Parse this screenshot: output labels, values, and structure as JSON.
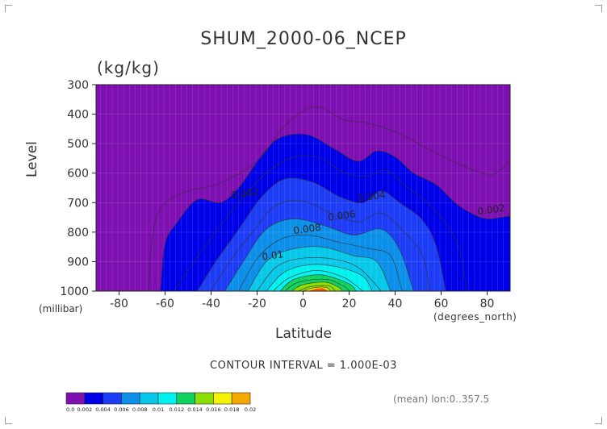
{
  "title": "SHUM_2000-06_NCEP",
  "units": "(kg/kg)",
  "ylabel": "Level",
  "yunit": "(millibar)",
  "xlabel": "Latitude",
  "xunit": "(degrees_north)",
  "contour_interval": "CONTOUR INTERVAL = 1.000E-03",
  "footnote": "(mean) lon:0..357.5",
  "colors": {
    "levels": [
      "#7e0fb0",
      "#0000e8",
      "#1c3cf5",
      "#0b8fe8",
      "#08c8ea",
      "#00f2f0",
      "#10d25e",
      "#8cdf00",
      "#f3f300",
      "#f7a800",
      "#f25b00",
      "#e80000"
    ],
    "contour_line": "#333333",
    "lightgrid": "#d9c2ea"
  },
  "chart_data": {
    "type": "heatmap",
    "xlim": [
      -90,
      90
    ],
    "ylim": [
      1000,
      300
    ],
    "y_reversed": true,
    "x_ticks": [
      -80,
      -60,
      -40,
      -20,
      0,
      20,
      40,
      60,
      80
    ],
    "x_tick_labels": [
      "-80",
      "-60",
      "-40",
      "-20",
      "0",
      "20",
      "40",
      "60",
      "80"
    ],
    "y_ticks": [
      300,
      400,
      500,
      600,
      700,
      800,
      900,
      1000
    ],
    "y_tick_labels": [
      "300",
      "400",
      "500",
      "600",
      "700",
      "800",
      "900",
      "1000"
    ],
    "colorbar": {
      "bounds": [
        0,
        0.002,
        0.004,
        0.006,
        0.008,
        0.01,
        0.012,
        0.014,
        0.016,
        0.018,
        0.02
      ],
      "labels": [
        "0.0",
        "0.002",
        "0.004",
        "0.006",
        "0.008",
        "0.01",
        "0.012",
        "0.014",
        "0.016",
        "0.018",
        "0.02"
      ]
    },
    "contour_labels": [
      {
        "text": "0.002",
        "lat": -25,
        "level": 680
      },
      {
        "text": "0.002",
        "lat": 82,
        "level": 735
      },
      {
        "text": "0.004",
        "lat": 30,
        "level": 690
      },
      {
        "text": "0.006",
        "lat": 17,
        "level": 755
      },
      {
        "text": "0.008",
        "lat": 2,
        "level": 800
      },
      {
        "text": "0.01",
        "lat": -13,
        "level": 890
      }
    ],
    "contours": [
      {
        "value": 0.001,
        "line": true,
        "points": [
          [
            -67,
            1000
          ],
          [
            -66,
            850
          ],
          [
            -62,
            720
          ],
          [
            -50,
            660
          ],
          [
            -38,
            640
          ],
          [
            -20,
            560
          ],
          [
            -8,
            440
          ],
          [
            5,
            375
          ],
          [
            18,
            420
          ],
          [
            28,
            430
          ],
          [
            40,
            460
          ],
          [
            55,
            520
          ],
          [
            68,
            570
          ],
          [
            78,
            600
          ],
          [
            84,
            600
          ],
          [
            90,
            555
          ]
        ]
      },
      {
        "value": 0.002,
        "line": true,
        "points": [
          [
            -62,
            1000
          ],
          [
            -60,
            840
          ],
          [
            -55,
            770
          ],
          [
            -46,
            690
          ],
          [
            -36,
            700
          ],
          [
            -28,
            650
          ],
          [
            -18,
            540
          ],
          [
            -10,
            480
          ],
          [
            2,
            470
          ],
          [
            14,
            520
          ],
          [
            24,
            560
          ],
          [
            32,
            525
          ],
          [
            40,
            545
          ],
          [
            48,
            600
          ],
          [
            58,
            640
          ],
          [
            66,
            700
          ],
          [
            74,
            740
          ],
          [
            80,
            755
          ],
          [
            86,
            750
          ],
          [
            90,
            745
          ]
        ]
      },
      {
        "value": 0.003,
        "line": true,
        "points": [
          [
            -56,
            1000
          ],
          [
            -50,
            930
          ],
          [
            -40,
            820
          ],
          [
            -28,
            700
          ],
          [
            -16,
            600
          ],
          [
            -4,
            545
          ],
          [
            8,
            550
          ],
          [
            18,
            600
          ],
          [
            28,
            610
          ],
          [
            36,
            590
          ],
          [
            44,
            640
          ],
          [
            54,
            700
          ],
          [
            62,
            770
          ],
          [
            68,
            860
          ],
          [
            71,
            1000
          ]
        ]
      },
      {
        "value": 0.004,
        "line": true,
        "points": [
          [
            -46,
            1000
          ],
          [
            -38,
            900
          ],
          [
            -28,
            790
          ],
          [
            -18,
            680
          ],
          [
            -8,
            620
          ],
          [
            4,
            630
          ],
          [
            16,
            680
          ],
          [
            26,
            700
          ],
          [
            34,
            660
          ],
          [
            42,
            700
          ],
          [
            52,
            760
          ],
          [
            58,
            850
          ],
          [
            62,
            1000
          ]
        ]
      },
      {
        "value": 0.005,
        "line": true,
        "points": [
          [
            -40,
            1000
          ],
          [
            -32,
            900
          ],
          [
            -22,
            800
          ],
          [
            -12,
            710
          ],
          [
            0,
            695
          ],
          [
            12,
            735
          ],
          [
            24,
            765
          ],
          [
            34,
            735
          ],
          [
            44,
            800
          ],
          [
            52,
            880
          ],
          [
            55,
            1000
          ]
        ]
      },
      {
        "value": 0.006,
        "line": true,
        "points": [
          [
            -34,
            1000
          ],
          [
            -26,
            900
          ],
          [
            -16,
            790
          ],
          [
            -4,
            755
          ],
          [
            10,
            780
          ],
          [
            22,
            810
          ],
          [
            34,
            790
          ],
          [
            42,
            860
          ],
          [
            48,
            1000
          ]
        ]
      },
      {
        "value": 0.007,
        "line": true,
        "points": [
          [
            -28,
            1000
          ],
          [
            -20,
            890
          ],
          [
            -10,
            825
          ],
          [
            2,
            810
          ],
          [
            16,
            835
          ],
          [
            28,
            855
          ],
          [
            38,
            880
          ],
          [
            43,
            1000
          ]
        ]
      },
      {
        "value": 0.008,
        "line": true,
        "points": [
          [
            -24,
            1000
          ],
          [
            -16,
            900
          ],
          [
            -6,
            860
          ],
          [
            8,
            850
          ],
          [
            22,
            880
          ],
          [
            32,
            900
          ],
          [
            38,
            1000
          ]
        ]
      },
      {
        "value": 0.009,
        "line": true,
        "points": [
          [
            -20,
            1000
          ],
          [
            -12,
            920
          ],
          [
            -2,
            890
          ],
          [
            12,
            890
          ],
          [
            24,
            920
          ],
          [
            34,
            1000
          ]
        ]
      },
      {
        "value": 0.01,
        "line": true,
        "points": [
          [
            -16,
            1000
          ],
          [
            -8,
            935
          ],
          [
            4,
            910
          ],
          [
            16,
            920
          ],
          [
            26,
            950
          ],
          [
            30,
            1000
          ]
        ]
      },
      {
        "value": 0.011,
        "line": true,
        "points": [
          [
            -13,
            1000
          ],
          [
            -6,
            955
          ],
          [
            6,
            930
          ],
          [
            18,
            955
          ],
          [
            26,
            1000
          ]
        ]
      },
      {
        "value": 0.012,
        "line": true,
        "points": [
          [
            -10,
            1000
          ],
          [
            -4,
            960
          ],
          [
            8,
            945
          ],
          [
            20,
            975
          ],
          [
            23,
            1000
          ]
        ]
      },
      {
        "value": 0.013,
        "line": true,
        "points": [
          [
            -8,
            1000
          ],
          [
            -2,
            970
          ],
          [
            10,
            960
          ],
          [
            18,
            985
          ],
          [
            20,
            1000
          ]
        ]
      },
      {
        "value": 0.014,
        "line": true,
        "points": [
          [
            -5,
            1000
          ],
          [
            0,
            978
          ],
          [
            10,
            970
          ],
          [
            16,
            990
          ],
          [
            17,
            1000
          ]
        ]
      },
      {
        "value": 0.015,
        "line": true,
        "points": [
          [
            -2,
            1000
          ],
          [
            3,
            985
          ],
          [
            11,
            982
          ],
          [
            14,
            1000
          ]
        ]
      },
      {
        "value": 0.016,
        "line": true,
        "points": [
          [
            0,
            1000
          ],
          [
            5,
            988
          ],
          [
            10,
            988
          ],
          [
            12,
            1000
          ]
        ]
      }
    ]
  }
}
